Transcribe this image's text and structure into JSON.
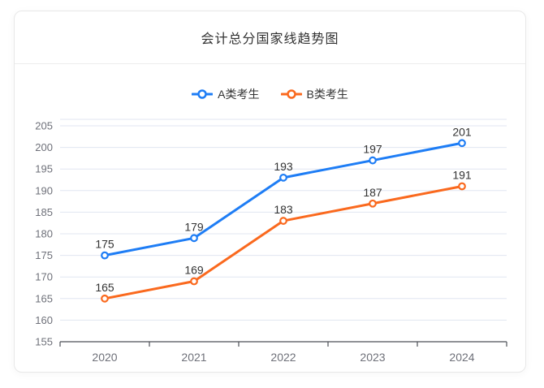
{
  "card": {
    "title": "会计总分国家线趋势图"
  },
  "chart_data": {
    "type": "line",
    "title": "会计总分国家线趋势图",
    "categories": [
      "2020",
      "2021",
      "2022",
      "2023",
      "2024"
    ],
    "series": [
      {
        "name": "A类考生",
        "color": "#1e7df5",
        "values": [
          175,
          179,
          193,
          197,
          201
        ]
      },
      {
        "name": "B类考生",
        "color": "#fa691e",
        "values": [
          165,
          169,
          183,
          187,
          191
        ]
      }
    ],
    "ylim": [
      155,
      205
    ],
    "y_interval": 5,
    "y_ticks": [
      155,
      160,
      165,
      170,
      175,
      180,
      185,
      190,
      195,
      200,
      205
    ],
    "grid": true,
    "legend_position": "top",
    "show_data_labels": true
  },
  "colors": {
    "grid_line": "#e0e6f1",
    "axis_line": "#4e5158",
    "axis_label": "#6e7079",
    "data_label": "#333333",
    "title_text": "#333333",
    "legend_text": "#333333",
    "card_border": "#e8e8e8",
    "card_bg": "#ffffff"
  }
}
